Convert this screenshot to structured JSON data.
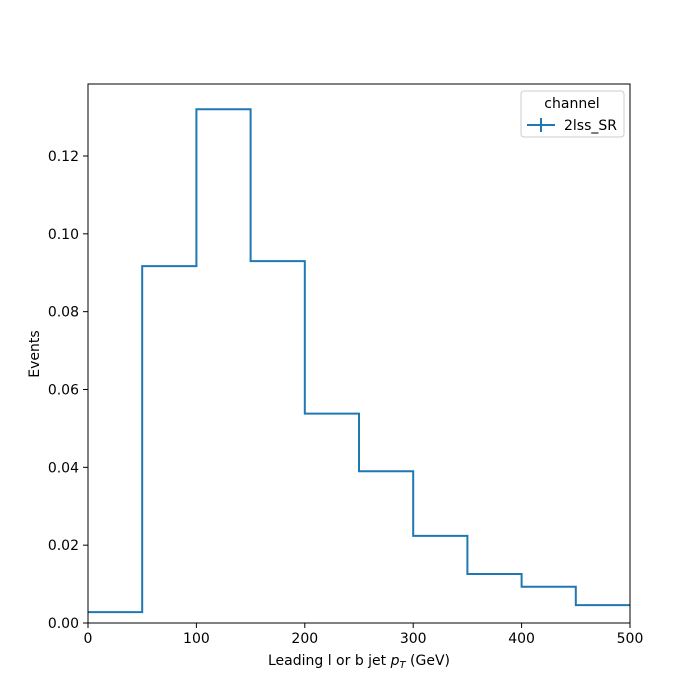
{
  "chart_data": {
    "type": "histogram-step",
    "title": "",
    "xlabel_prefix": "Leading l or b jet ",
    "xlabel_var": "p",
    "xlabel_sub": "T",
    "xlabel_suffix": " (GeV)",
    "ylabel": "Events",
    "xlim": [
      0,
      500
    ],
    "ylim": [
      0,
      0.1385
    ],
    "xticks": [
      0,
      100,
      200,
      300,
      400,
      500
    ],
    "xtick_labels": [
      "0",
      "100",
      "200",
      "300",
      "400",
      "500"
    ],
    "yticks": [
      0.0,
      0.02,
      0.04,
      0.06,
      0.08,
      0.1,
      0.12
    ],
    "ytick_labels": [
      "0.00",
      "0.02",
      "0.04",
      "0.06",
      "0.08",
      "0.10",
      "0.12"
    ],
    "grid": false,
    "legend": {
      "title": "channel",
      "placement": "top-right"
    },
    "bin_edges": [
      0,
      50,
      100,
      150,
      200,
      250,
      300,
      350,
      400,
      450,
      500
    ],
    "series": [
      {
        "name": "2lss_SR",
        "color": "#1f77b4",
        "values": [
          0.0028,
          0.0917,
          0.132,
          0.093,
          0.0538,
          0.039,
          0.0224,
          0.0126,
          0.0093,
          0.0046
        ]
      }
    ]
  }
}
